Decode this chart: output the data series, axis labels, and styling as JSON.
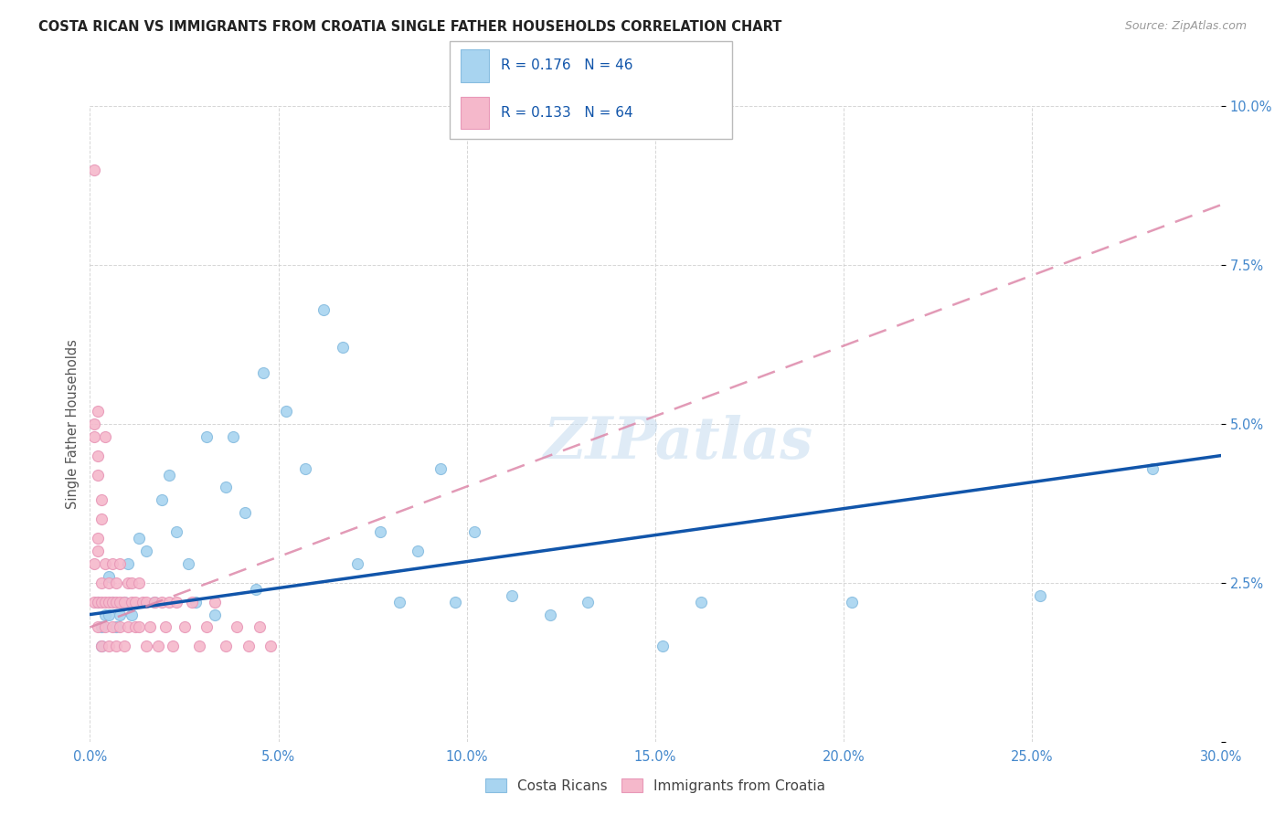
{
  "title": "COSTA RICAN VS IMMIGRANTS FROM CROATIA SINGLE FATHER HOUSEHOLDS CORRELATION CHART",
  "source": "Source: ZipAtlas.com",
  "ylabel": "Single Father Households",
  "xlim": [
    0.0,
    0.3
  ],
  "ylim": [
    0.0,
    0.1
  ],
  "xticks": [
    0.0,
    0.05,
    0.1,
    0.15,
    0.2,
    0.25,
    0.3
  ],
  "yticks": [
    0.0,
    0.025,
    0.05,
    0.075,
    0.1
  ],
  "xtick_labels": [
    "0.0%",
    "5.0%",
    "10.0%",
    "15.0%",
    "20.0%",
    "25.0%",
    "30.0%"
  ],
  "ytick_labels": [
    "",
    "2.5%",
    "5.0%",
    "7.5%",
    "10.0%"
  ],
  "blue_R": 0.176,
  "blue_N": 46,
  "pink_R": 0.133,
  "pink_N": 64,
  "blue_color": "#a8d4f0",
  "pink_color": "#f5b8cb",
  "blue_edge_color": "#88bde0",
  "pink_edge_color": "#e898b8",
  "blue_line_color": "#1155aa",
  "pink_line_color": "#dd88aa",
  "watermark": "ZIPatlas",
  "legend_label_blue": "Costa Ricans",
  "legend_label_pink": "Immigrants from Croatia",
  "blue_x": [
    0.002,
    0.003,
    0.004,
    0.005,
    0.006,
    0.007,
    0.008,
    0.009,
    0.01,
    0.011,
    0.013,
    0.015,
    0.017,
    0.019,
    0.021,
    0.023,
    0.026,
    0.028,
    0.031,
    0.033,
    0.036,
    0.038,
    0.041,
    0.044,
    0.046,
    0.052,
    0.057,
    0.062,
    0.067,
    0.071,
    0.077,
    0.082,
    0.087,
    0.093,
    0.097,
    0.102,
    0.112,
    0.122,
    0.132,
    0.152,
    0.162,
    0.202,
    0.252,
    0.282,
    0.005,
    0.003
  ],
  "blue_y": [
    0.022,
    0.018,
    0.02,
    0.026,
    0.022,
    0.018,
    0.02,
    0.022,
    0.028,
    0.02,
    0.032,
    0.03,
    0.022,
    0.038,
    0.042,
    0.033,
    0.028,
    0.022,
    0.048,
    0.02,
    0.04,
    0.048,
    0.036,
    0.024,
    0.058,
    0.052,
    0.043,
    0.068,
    0.062,
    0.028,
    0.033,
    0.022,
    0.03,
    0.043,
    0.022,
    0.033,
    0.023,
    0.02,
    0.022,
    0.015,
    0.022,
    0.022,
    0.023,
    0.043,
    0.02,
    0.015
  ],
  "pink_x": [
    0.001,
    0.001,
    0.002,
    0.002,
    0.002,
    0.003,
    0.003,
    0.003,
    0.004,
    0.004,
    0.004,
    0.005,
    0.005,
    0.005,
    0.006,
    0.006,
    0.006,
    0.007,
    0.007,
    0.007,
    0.008,
    0.008,
    0.008,
    0.009,
    0.009,
    0.01,
    0.01,
    0.011,
    0.011,
    0.012,
    0.012,
    0.013,
    0.013,
    0.014,
    0.015,
    0.015,
    0.016,
    0.017,
    0.018,
    0.019,
    0.02,
    0.021,
    0.022,
    0.023,
    0.025,
    0.027,
    0.029,
    0.031,
    0.033,
    0.036,
    0.039,
    0.042,
    0.045,
    0.048,
    0.001,
    0.002,
    0.003,
    0.004,
    0.002,
    0.001,
    0.002,
    0.003,
    0.001,
    0.002
  ],
  "pink_y": [
    0.022,
    0.028,
    0.018,
    0.022,
    0.03,
    0.015,
    0.022,
    0.025,
    0.018,
    0.022,
    0.028,
    0.015,
    0.022,
    0.025,
    0.018,
    0.022,
    0.028,
    0.015,
    0.022,
    0.025,
    0.018,
    0.022,
    0.028,
    0.015,
    0.022,
    0.025,
    0.018,
    0.022,
    0.025,
    0.018,
    0.022,
    0.025,
    0.018,
    0.022,
    0.015,
    0.022,
    0.018,
    0.022,
    0.015,
    0.022,
    0.018,
    0.022,
    0.015,
    0.022,
    0.018,
    0.022,
    0.015,
    0.018,
    0.022,
    0.015,
    0.018,
    0.015,
    0.018,
    0.015,
    0.048,
    0.042,
    0.035,
    0.048,
    0.052,
    0.05,
    0.045,
    0.038,
    0.09,
    0.032
  ]
}
